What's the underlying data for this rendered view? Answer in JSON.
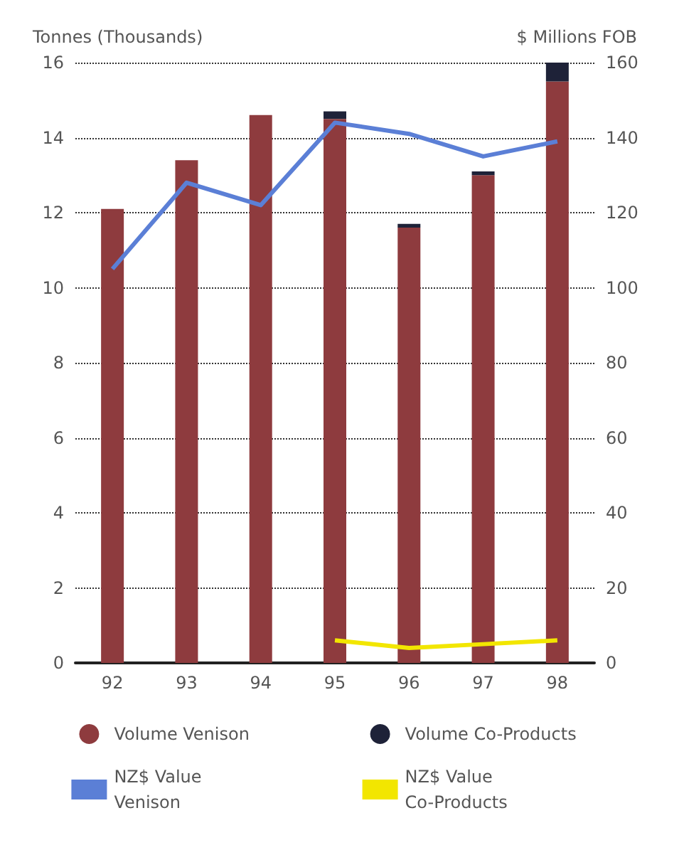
{
  "chart_data": {
    "type": "bar",
    "stacked": true,
    "ylabel": "Tonnes (Thousands)",
    "y2label": "$ Millions FOB",
    "categories": [
      "92",
      "93",
      "94",
      "95",
      "96",
      "97",
      "98"
    ],
    "series": [
      {
        "name": "Volume Venison",
        "color": "#8e3b3e",
        "values": [
          12.1,
          13.4,
          14.6,
          14.5,
          11.6,
          13.0,
          15.5
        ]
      },
      {
        "name": "Volume Co-Products",
        "color": "#1e2238",
        "values": [
          null,
          null,
          null,
          0.2,
          0.1,
          0.1,
          0.5
        ]
      },
      {
        "name": "NZ$ Value Venison",
        "type": "line",
        "axis": "y2",
        "color": "#5b7fd6",
        "values": [
          105,
          128,
          122,
          144,
          141,
          135,
          139
        ]
      },
      {
        "name": "NZ$ Value Co-Products",
        "type": "line",
        "axis": "y2",
        "color": "#f2e600",
        "values": [
          null,
          null,
          null,
          6,
          4,
          5,
          6
        ]
      }
    ],
    "ylim": [
      0,
      16
    ],
    "yticks": [
      0,
      2,
      4,
      6,
      8,
      10,
      12,
      14,
      16
    ],
    "y2lim": [
      0,
      160
    ],
    "y2ticks": [
      0,
      20,
      40,
      60,
      80,
      100,
      120,
      140,
      160
    ],
    "grid": "y",
    "legend": "bottom",
    "marker": "none",
    "line_style": "solid"
  }
}
